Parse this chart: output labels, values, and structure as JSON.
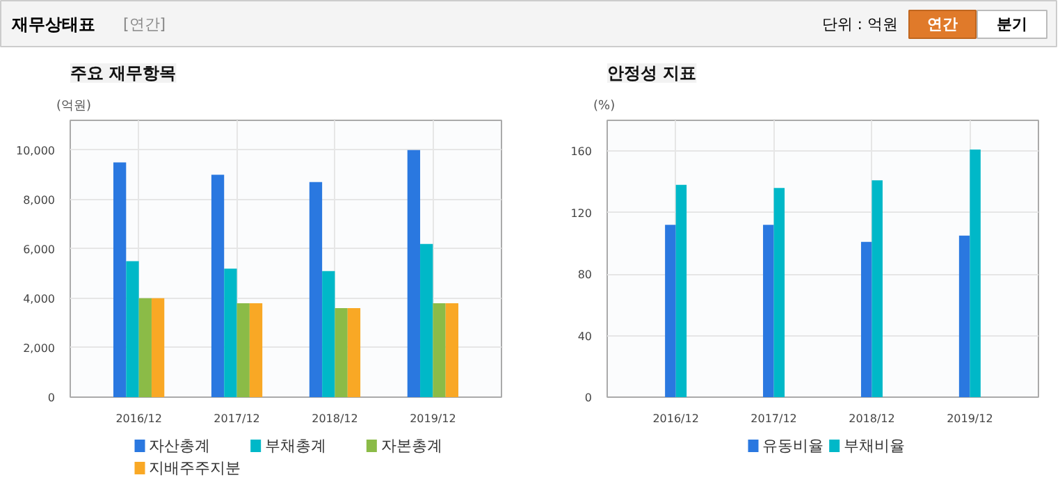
{
  "chart_data": [
    {
      "type": "bar",
      "title": "주요 재무항목",
      "ylabel": "(억원)",
      "annotations": [
        "재무상태표",
        "[연간]",
        "단위 : 억원",
        "연간",
        "분기"
      ],
      "categories": [
        "2016/12",
        "2017/12",
        "2018/12",
        "2019/12"
      ],
      "series": [
        {
          "name": "자산총계",
          "color": "#2a78e0",
          "values": [
            9500,
            9000,
            8700,
            10000
          ]
        },
        {
          "name": "부채총계",
          "color": "#00b8c8",
          "values": [
            5500,
            5200,
            5100,
            6200
          ]
        },
        {
          "name": "자본총계",
          "color": "#8bbb47",
          "values": [
            4000,
            3800,
            3600,
            3800
          ]
        },
        {
          "name": "지배주주지분",
          "color": "#f9a825",
          "values": [
            4000,
            3800,
            3600,
            3800
          ]
        }
      ],
      "ylim": [
        0,
        11200
      ],
      "yticks": [
        {
          "value": 0,
          "label": "0"
        },
        {
          "value": 2000,
          "label": "2,000"
        },
        {
          "value": 4000,
          "label": "4,000"
        },
        {
          "value": 6000,
          "label": "6,000"
        },
        {
          "value": 8000,
          "label": "8,000"
        },
        {
          "value": 10000,
          "label": "10,000"
        }
      ],
      "grid": true,
      "legend": "bottom"
    },
    {
      "type": "bar",
      "title": "안정성 지표",
      "ylabel": "(%)",
      "categories": [
        "2016/12",
        "2017/12",
        "2018/12",
        "2019/12"
      ],
      "series": [
        {
          "name": "유동비율",
          "color": "#2a78e0",
          "values": [
            112,
            112,
            101,
            105
          ]
        },
        {
          "name": "부채비율",
          "color": "#00b8c8",
          "values": [
            138,
            136,
            141,
            161
          ]
        }
      ],
      "ylim": [
        0,
        180
      ],
      "yticks": [
        0,
        40,
        80,
        120,
        160
      ],
      "grid": true,
      "legend": "bottom"
    }
  ]
}
